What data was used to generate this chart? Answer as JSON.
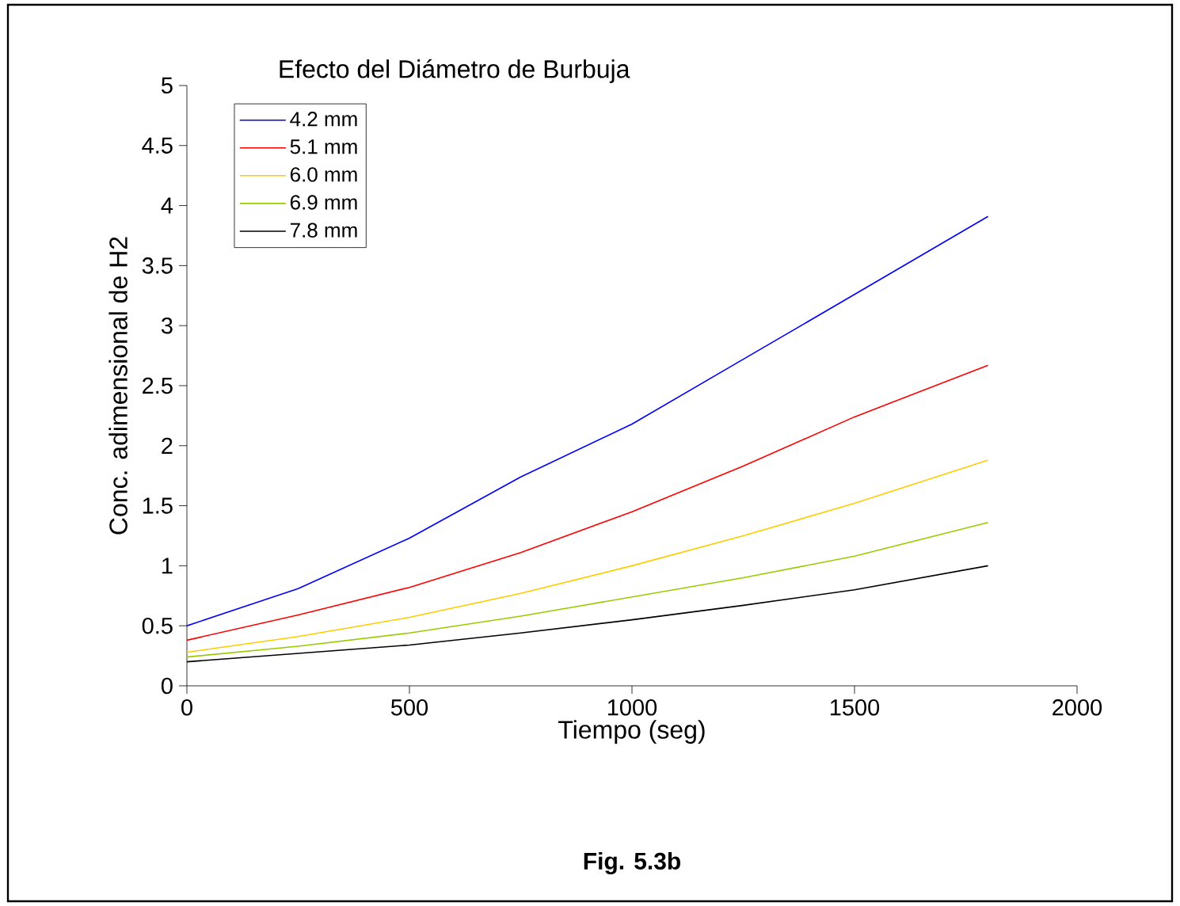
{
  "chart_data": {
    "type": "line",
    "title": "Efecto del Diámetro de Burbuja",
    "xlabel": "Tiempo (seg)",
    "ylabel": "Conc. adimensional de H2",
    "x": [
      0,
      250,
      500,
      750,
      1000,
      1250,
      1500,
      1800
    ],
    "xlim": [
      0,
      2000
    ],
    "xticks": [
      0,
      500,
      1000,
      1500,
      2000
    ],
    "ylim": [
      0,
      5
    ],
    "yticks": [
      0,
      0.5,
      1,
      1.5,
      2,
      2.5,
      3,
      3.5,
      4,
      4.5,
      5
    ],
    "legend": "top left",
    "annotations": [
      "Fig. 5.3b"
    ],
    "series": [
      {
        "name": "4.2 mm",
        "color": "#0000ff",
        "values": [
          0.5,
          0.81,
          1.23,
          1.74,
          2.18,
          2.72,
          3.26,
          3.91
        ]
      },
      {
        "name": "5.1 mm",
        "color": "#ff0000",
        "values": [
          0.38,
          0.59,
          0.82,
          1.11,
          1.45,
          1.83,
          2.24,
          2.67
        ]
      },
      {
        "name": "6.0 mm",
        "color": "#ffcc00",
        "values": [
          0.28,
          0.41,
          0.57,
          0.77,
          1.0,
          1.25,
          1.52,
          1.88
        ]
      },
      {
        "name": "6.9 mm",
        "color": "#99cc00",
        "values": [
          0.24,
          0.33,
          0.44,
          0.58,
          0.74,
          0.9,
          1.08,
          1.36
        ]
      },
      {
        "name": "7.8 mm",
        "color": "#000000",
        "values": [
          0.2,
          0.27,
          0.34,
          0.44,
          0.55,
          0.67,
          0.8,
          1.0
        ]
      }
    ]
  }
}
